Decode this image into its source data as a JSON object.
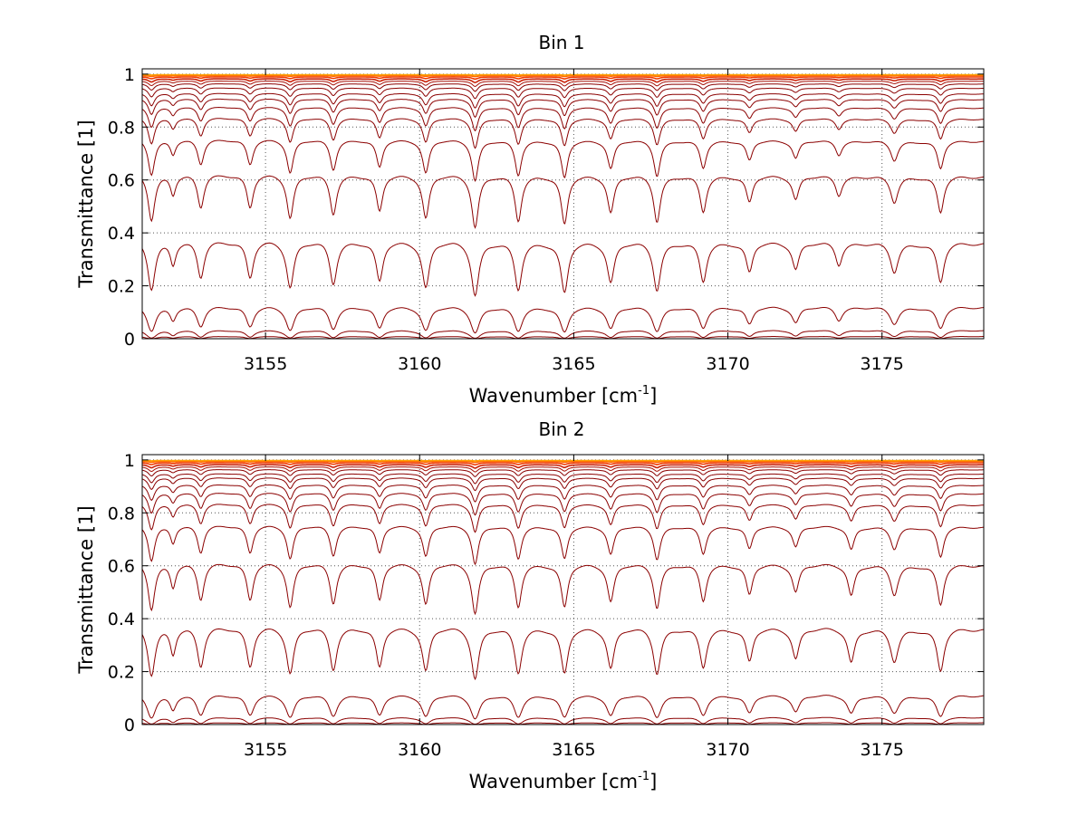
{
  "palette": {
    "dark": "#8b0000",
    "mid": "#c41e0a",
    "bright": "#ff4500",
    "light": "#ffa000"
  },
  "chart_data": [
    {
      "type": "line",
      "title": "Bin 1",
      "xlabel_main": "Wavenumber [cm",
      "xlabel_sup": "-1",
      "xlabel_close": "]",
      "ylabel": "Transmittance [1]",
      "xlim": [
        3151,
        3178.3
      ],
      "ylim": [
        0,
        1.02
      ],
      "x_ticks": [
        3155,
        3160,
        3165,
        3170,
        3175
      ],
      "x_tick_labels": [
        "3155",
        "3160",
        "3165",
        "3170",
        "3175"
      ],
      "y_ticks": [
        0,
        0.2,
        0.4,
        0.6,
        0.8,
        1
      ],
      "y_tick_labels": [
        "0",
        "0.2",
        "0.4",
        "0.6",
        "0.8",
        "1"
      ],
      "grid": true,
      "absorption_lines": [
        {
          "x": 3151.3,
          "w": 0.12,
          "s": 1.3
        },
        {
          "x": 3152.0,
          "w": 0.1,
          "s": 0.5
        },
        {
          "x": 3152.9,
          "w": 0.12,
          "s": 0.9
        },
        {
          "x": 3154.5,
          "w": 0.12,
          "s": 0.9
        },
        {
          "x": 3155.8,
          "w": 0.12,
          "s": 1.2
        },
        {
          "x": 3157.2,
          "w": 0.12,
          "s": 1.1
        },
        {
          "x": 3158.7,
          "w": 0.12,
          "s": 1.0
        },
        {
          "x": 3160.2,
          "w": 0.12,
          "s": 1.2
        },
        {
          "x": 3161.8,
          "w": 0.12,
          "s": 1.5
        },
        {
          "x": 3163.2,
          "w": 0.12,
          "s": 1.3
        },
        {
          "x": 3164.7,
          "w": 0.12,
          "s": 1.4
        },
        {
          "x": 3166.2,
          "w": 0.12,
          "s": 1.0
        },
        {
          "x": 3167.7,
          "w": 0.12,
          "s": 1.3
        },
        {
          "x": 3169.2,
          "w": 0.12,
          "s": 1.0
        },
        {
          "x": 3170.7,
          "w": 0.12,
          "s": 0.7
        },
        {
          "x": 3172.2,
          "w": 0.12,
          "s": 0.6
        },
        {
          "x": 3173.6,
          "w": 0.12,
          "s": 0.5
        },
        {
          "x": 3175.4,
          "w": 0.14,
          "s": 0.7
        },
        {
          "x": 3176.9,
          "w": 0.12,
          "s": 1.0
        }
      ],
      "series_continuum": [
        0.0,
        0.01,
        0.035,
        0.13,
        0.38,
        0.63,
        0.76,
        0.84,
        0.88,
        0.91,
        0.93,
        0.95,
        0.965,
        0.975,
        0.983,
        0.99,
        0.995,
        0.998
      ]
    },
    {
      "type": "line",
      "title": "Bin 2",
      "xlabel_main": "Wavenumber [cm",
      "xlabel_sup": "-1",
      "xlabel_close": "]",
      "ylabel": "Transmittance [1]",
      "xlim": [
        3151,
        3178.3
      ],
      "ylim": [
        0,
        1.02
      ],
      "x_ticks": [
        3155,
        3160,
        3165,
        3170,
        3175
      ],
      "x_tick_labels": [
        "3155",
        "3160",
        "3165",
        "3170",
        "3175"
      ],
      "y_ticks": [
        0,
        0.2,
        0.4,
        0.6,
        0.8,
        1
      ],
      "y_tick_labels": [
        "0",
        "0.2",
        "0.4",
        "0.6",
        "0.8",
        "1"
      ],
      "grid": true,
      "absorption_lines": [
        {
          "x": 3151.3,
          "w": 0.12,
          "s": 1.3
        },
        {
          "x": 3152.0,
          "w": 0.1,
          "s": 0.6
        },
        {
          "x": 3152.9,
          "w": 0.12,
          "s": 1.0
        },
        {
          "x": 3154.5,
          "w": 0.12,
          "s": 1.0
        },
        {
          "x": 3155.8,
          "w": 0.12,
          "s": 1.2
        },
        {
          "x": 3157.2,
          "w": 0.12,
          "s": 1.1
        },
        {
          "x": 3158.7,
          "w": 0.12,
          "s": 1.0
        },
        {
          "x": 3160.2,
          "w": 0.12,
          "s": 1.1
        },
        {
          "x": 3161.8,
          "w": 0.12,
          "s": 1.4
        },
        {
          "x": 3163.2,
          "w": 0.12,
          "s": 1.2
        },
        {
          "x": 3164.7,
          "w": 0.12,
          "s": 1.2
        },
        {
          "x": 3166.2,
          "w": 0.12,
          "s": 1.0
        },
        {
          "x": 3167.7,
          "w": 0.12,
          "s": 1.2
        },
        {
          "x": 3169.2,
          "w": 0.12,
          "s": 1.0
        },
        {
          "x": 3170.7,
          "w": 0.12,
          "s": 0.8
        },
        {
          "x": 3172.2,
          "w": 0.12,
          "s": 0.7
        },
        {
          "x": 3174.0,
          "w": 0.12,
          "s": 0.8
        },
        {
          "x": 3175.4,
          "w": 0.14,
          "s": 0.8
        },
        {
          "x": 3176.9,
          "w": 0.12,
          "s": 1.1
        }
      ],
      "series_continuum": [
        0.0,
        0.008,
        0.03,
        0.12,
        0.38,
        0.62,
        0.76,
        0.84,
        0.88,
        0.91,
        0.935,
        0.95,
        0.965,
        0.975,
        0.983,
        0.99,
        0.995,
        0.998
      ]
    }
  ]
}
